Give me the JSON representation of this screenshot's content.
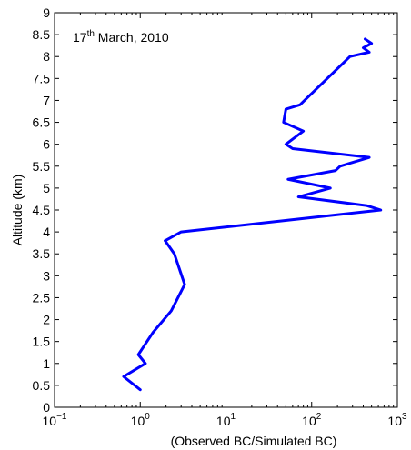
{
  "chart_data": {
    "type": "line",
    "title": "",
    "annotation": {
      "prefix": "17",
      "superscript": "th",
      "suffix": " March, 2010",
      "position": "top-left"
    },
    "xlabel": "(Observed BC/Simulated BC)",
    "ylabel": "Altitude (km)",
    "xscale": "log",
    "xlim": [
      0.1,
      1000
    ],
    "ylim": [
      0,
      9
    ],
    "grid": false,
    "legend": "none",
    "x_ticks": [
      {
        "value": 0.1,
        "base": "10",
        "exp": "−1"
      },
      {
        "value": 1,
        "base": "10",
        "exp": "0"
      },
      {
        "value": 10,
        "base": "10",
        "exp": "1"
      },
      {
        "value": 100,
        "base": "10",
        "exp": "2"
      },
      {
        "value": 1000,
        "base": "10",
        "exp": "3"
      }
    ],
    "y_ticks": [
      {
        "value": 0,
        "label": "0"
      },
      {
        "value": 0.5,
        "label": "0.5"
      },
      {
        "value": 1,
        "label": "1"
      },
      {
        "value": 1.5,
        "label": "1.5"
      },
      {
        "value": 2,
        "label": "2"
      },
      {
        "value": 2.5,
        "label": "2.5"
      },
      {
        "value": 3,
        "label": "3"
      },
      {
        "value": 3.5,
        "label": "3.5"
      },
      {
        "value": 4,
        "label": "4"
      },
      {
        "value": 4.5,
        "label": "4.5"
      },
      {
        "value": 5,
        "label": "5"
      },
      {
        "value": 5.5,
        "label": "5.5"
      },
      {
        "value": 6,
        "label": "6"
      },
      {
        "value": 6.5,
        "label": "6.5"
      },
      {
        "value": 7,
        "label": "7"
      },
      {
        "value": 7.5,
        "label": "7.5"
      },
      {
        "value": 8,
        "label": "8"
      },
      {
        "value": 8.5,
        "label": "8.5"
      },
      {
        "value": 9,
        "label": "9"
      }
    ],
    "series": [
      {
        "color": "#0000ff",
        "points": [
          {
            "x": 1.0,
            "y": 0.4
          },
          {
            "x": 0.64,
            "y": 0.7
          },
          {
            "x": 1.15,
            "y": 1.0
          },
          {
            "x": 0.95,
            "y": 1.2
          },
          {
            "x": 1.4,
            "y": 1.7
          },
          {
            "x": 2.3,
            "y": 2.2
          },
          {
            "x": 3.3,
            "y": 2.8
          },
          {
            "x": 2.5,
            "y": 3.5
          },
          {
            "x": 1.95,
            "y": 3.8
          },
          {
            "x": 3.0,
            "y": 4.0
          },
          {
            "x": 75,
            "y": 4.3
          },
          {
            "x": 640,
            "y": 4.5
          },
          {
            "x": 440,
            "y": 4.6
          },
          {
            "x": 70,
            "y": 4.8
          },
          {
            "x": 165,
            "y": 5.0
          },
          {
            "x": 53,
            "y": 5.2
          },
          {
            "x": 190,
            "y": 5.4
          },
          {
            "x": 215,
            "y": 5.5
          },
          {
            "x": 470,
            "y": 5.7
          },
          {
            "x": 60,
            "y": 5.9
          },
          {
            "x": 50,
            "y": 6.0
          },
          {
            "x": 80,
            "y": 6.3
          },
          {
            "x": 47,
            "y": 6.5
          },
          {
            "x": 50,
            "y": 6.8
          },
          {
            "x": 73,
            "y": 6.9
          },
          {
            "x": 280,
            "y": 8.0
          },
          {
            "x": 470,
            "y": 8.1
          },
          {
            "x": 400,
            "y": 8.2
          },
          {
            "x": 500,
            "y": 8.3
          },
          {
            "x": 420,
            "y": 8.4
          }
        ]
      }
    ]
  }
}
